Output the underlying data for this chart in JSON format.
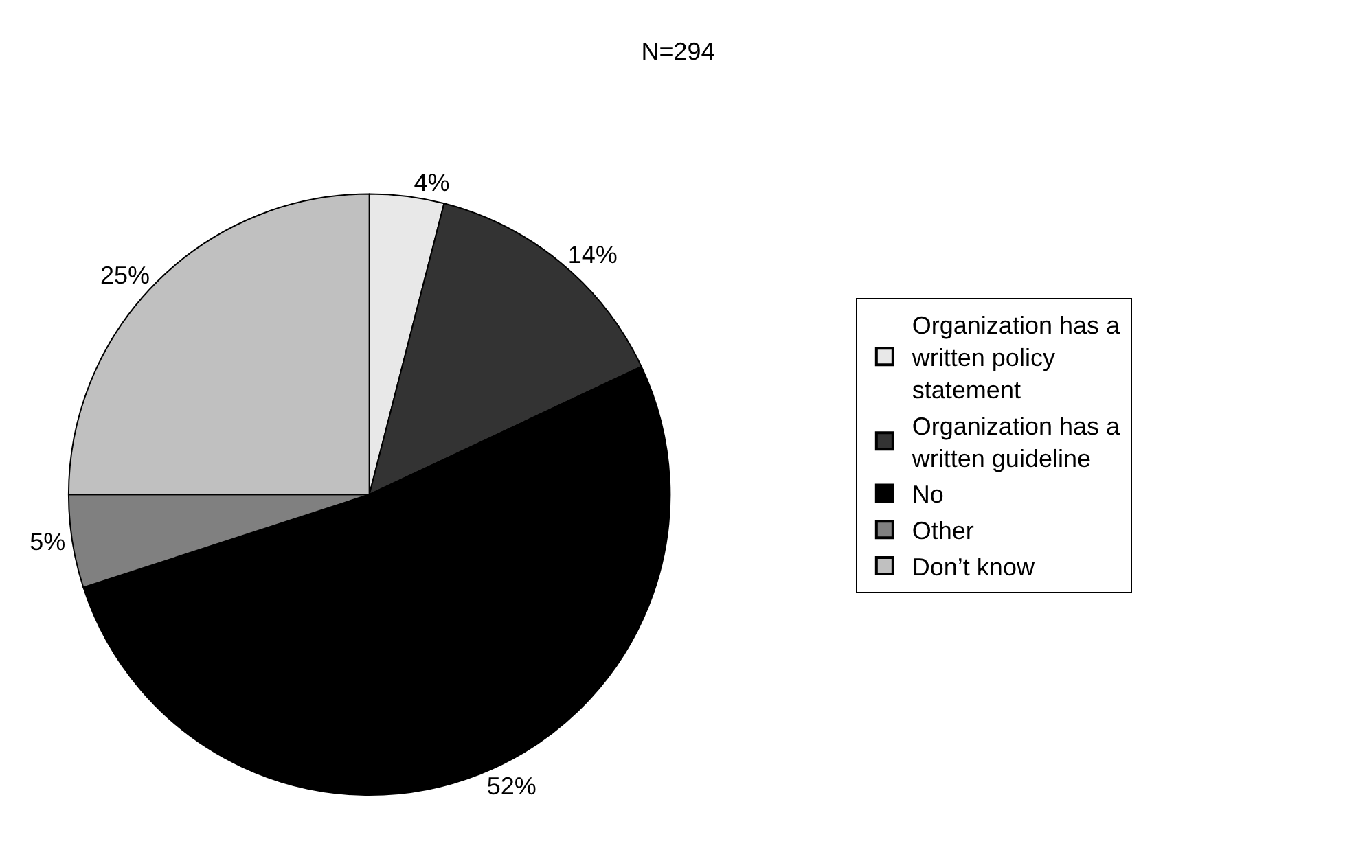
{
  "chart_data": {
    "type": "pie",
    "title": "N=294",
    "categories": [
      "Organization has a written policy statement",
      "Organization has a written guideline",
      "No",
      "Other",
      "Don’t know"
    ],
    "values": [
      4,
      14,
      52,
      5,
      25
    ],
    "value_labels": [
      "4%",
      "14%",
      "52%",
      "5%",
      "25%"
    ],
    "colors": [
      "#e8e8e8",
      "#333333",
      "#000000",
      "#808080",
      "#c0c0c0"
    ],
    "legend": "right"
  }
}
